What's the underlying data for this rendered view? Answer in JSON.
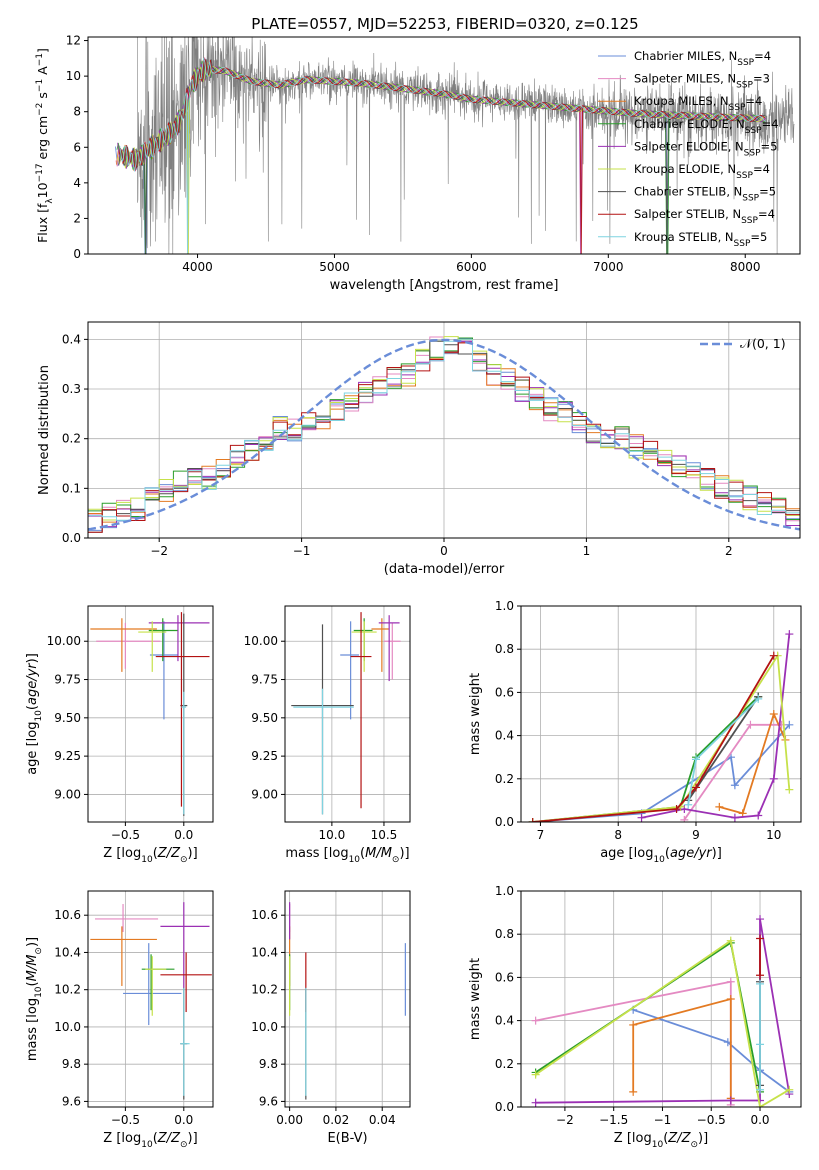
{
  "figure_title": "PLATE=0557, MJD=52253, FIBERID=0320, z=0.125",
  "colors": {
    "spectrum": "#808080",
    "normal_curve": "#6a8dd8",
    "grid": "#b0b0b0"
  },
  "models": [
    {
      "label": "Chabrier MILES, N",
      "sub": "SSP",
      "suffix": "=4",
      "color": "#6a8dd8"
    },
    {
      "label": "Salpeter MILES, N",
      "sub": "SSP",
      "suffix": "=3",
      "color": "#e48ac2"
    },
    {
      "label": "Kroupa MILES, N",
      "sub": "SSP",
      "suffix": "=4",
      "color": "#e37a22"
    },
    {
      "label": "Chabrier ELODIE, N",
      "sub": "SSP",
      "suffix": "=4",
      "color": "#2a9d2a"
    },
    {
      "label": "Salpeter ELODIE, N",
      "sub": "SSP",
      "suffix": "=5",
      "color": "#9b30b4"
    },
    {
      "label": "Kroupa ELODIE, N",
      "sub": "SSP",
      "suffix": "=4",
      "color": "#c6e14a"
    },
    {
      "label": "Chabrier STELIB, N",
      "sub": "SSP",
      "suffix": "=5",
      "color": "#505050"
    },
    {
      "label": "Salpeter STELIB, N",
      "sub": "SSP",
      "suffix": "=4",
      "color": "#b31212"
    },
    {
      "label": "Kroupa STELIB, N",
      "sub": "SSP",
      "suffix": "=5",
      "color": "#7fd3e0"
    }
  ],
  "chart_data": [
    {
      "id": "spectrum",
      "type": "line",
      "xlabel": "wavelength [Angstrom, rest frame]",
      "ylabel": "Flux [f_λ 10^-17 erg cm^-2 s^-1 A^-1]",
      "xlim": [
        3200,
        8400
      ],
      "ylim": [
        0,
        12.2
      ],
      "xticks": [
        4000,
        5000,
        6000,
        7000,
        8000
      ],
      "yticks": [
        0,
        2,
        4,
        6,
        8,
        10,
        12
      ],
      "grid": false,
      "legend": "upper right",
      "continuum_nodes": [
        [
          3420,
          5.6
        ],
        [
          3550,
          5.3
        ],
        [
          3680,
          6.1
        ],
        [
          3800,
          6.8
        ],
        [
          3880,
          7.6
        ],
        [
          3960,
          9.6
        ],
        [
          4050,
          10.4
        ],
        [
          4200,
          10.3
        ],
        [
          4400,
          9.7
        ],
        [
          4600,
          9.5
        ],
        [
          4800,
          9.8
        ],
        [
          5000,
          9.7
        ],
        [
          5200,
          9.6
        ],
        [
          5500,
          9.3
        ],
        [
          5800,
          9.0
        ],
        [
          6000,
          8.7
        ],
        [
          6300,
          8.5
        ],
        [
          6600,
          8.3
        ],
        [
          6900,
          8.1
        ],
        [
          7200,
          7.9
        ],
        [
          7500,
          7.8
        ],
        [
          7800,
          7.7
        ],
        [
          8150,
          7.6
        ]
      ],
      "observed_range": [
        3560,
        8360
      ],
      "model_range": [
        3400,
        8150
      ],
      "model_dips": [
        3620,
        3930,
        6800,
        7430
      ]
    },
    {
      "id": "residual_histogram",
      "type": "bar",
      "xlabel": "(data-model)/error",
      "ylabel": "Normed distribution",
      "xlim": [
        -2.5,
        2.5
      ],
      "ylim": [
        0,
        0.435
      ],
      "xticks": [
        -2,
        -1,
        0,
        1,
        2
      ],
      "yticks": [
        0.0,
        0.1,
        0.2,
        0.3,
        0.4
      ],
      "grid": true,
      "legend": "upper right",
      "curve_label": "𝒩(0, 1)",
      "bin_width": 0.1,
      "bin_centers": [
        -2.45,
        -2.35,
        -2.25,
        -2.15,
        -2.05,
        -1.95,
        -1.85,
        -1.75,
        -1.65,
        -1.55,
        -1.45,
        -1.35,
        -1.25,
        -1.15,
        -1.05,
        -0.95,
        -0.85,
        -0.75,
        -0.65,
        -0.55,
        -0.45,
        -0.35,
        -0.25,
        -0.15,
        -0.05,
        0.05,
        0.15,
        0.25,
        0.35,
        0.45,
        0.55,
        0.65,
        0.75,
        0.85,
        0.95,
        1.05,
        1.15,
        1.25,
        1.35,
        1.45,
        1.55,
        1.65,
        1.75,
        1.85,
        1.95,
        2.05,
        2.15,
        2.25,
        2.35,
        2.45
      ],
      "mean_values": [
        0.035,
        0.045,
        0.052,
        0.06,
        0.08,
        0.095,
        0.11,
        0.13,
        0.12,
        0.14,
        0.165,
        0.18,
        0.2,
        0.22,
        0.215,
        0.235,
        0.24,
        0.26,
        0.275,
        0.29,
        0.3,
        0.32,
        0.33,
        0.36,
        0.38,
        0.39,
        0.385,
        0.36,
        0.33,
        0.32,
        0.3,
        0.28,
        0.26,
        0.25,
        0.23,
        0.215,
        0.205,
        0.2,
        0.185,
        0.175,
        0.155,
        0.145,
        0.13,
        0.12,
        0.105,
        0.095,
        0.08,
        0.07,
        0.06,
        0.05
      ]
    },
    {
      "id": "age_vs_Z",
      "type": "scatter",
      "xlabel": "Z [log10(Z/Z⊙)]",
      "ylabel": "age  [log10(age/yr)]",
      "xlim": [
        -0.82,
        0.25
      ],
      "ylim": [
        8.82,
        10.23
      ],
      "xticks": [
        -0.5,
        0.0
      ],
      "yticks": [
        9.0,
        9.25,
        9.5,
        9.75,
        10.0
      ],
      "grid": true,
      "points": [
        {
          "model": 0,
          "x": -0.17,
          "y": 9.91,
          "xerr": [
            0.12,
            0.12
          ],
          "yerr": [
            0.42,
            0.22
          ]
        },
        {
          "model": 1,
          "x": -0.5,
          "y": 10.0,
          "xerr": [
            0.25,
            0.3
          ],
          "yerr": [
            0.18,
            0.12
          ]
        },
        {
          "model": 2,
          "x": -0.53,
          "y": 10.08,
          "xerr": [
            0.27,
            0.3
          ],
          "yerr": [
            0.28,
            0.07
          ]
        },
        {
          "model": 3,
          "x": -0.18,
          "y": 10.07,
          "xerr": [
            0.12,
            0.13
          ],
          "yerr": [
            0.2,
            0.08
          ]
        },
        {
          "model": 4,
          "x": -0.05,
          "y": 10.12,
          "xerr": [
            0.25,
            0.27
          ],
          "yerr": [
            0.25,
            0.05
          ]
        },
        {
          "model": 5,
          "x": -0.27,
          "y": 10.06,
          "xerr": [
            0.12,
            0.12
          ],
          "yerr": [
            0.26,
            0.07
          ]
        },
        {
          "model": 6,
          "x": 0.0,
          "y": 9.58,
          "xerr": [
            0.03,
            0.03
          ],
          "yerr": [
            0.72,
            0.6
          ]
        },
        {
          "model": 7,
          "x": -0.02,
          "y": 9.9,
          "xerr": [
            0.22,
            0.24
          ],
          "yerr": [
            0.98,
            0.29
          ]
        },
        {
          "model": 8,
          "x": 0.0,
          "y": 9.57,
          "xerr": [
            0.02,
            0.02
          ],
          "yerr": [
            0.7,
            0.1
          ]
        }
      ]
    },
    {
      "id": "age_vs_mass",
      "type": "scatter",
      "xlabel": "mass [log10(M/M⊙)]",
      "ylabel": "",
      "xlim": [
        9.55,
        10.75
      ],
      "ylim": [
        8.82,
        10.23
      ],
      "xticks": [
        10.0,
        10.5
      ],
      "yticks": [
        9.0,
        9.25,
        9.5,
        9.75,
        10.0
      ],
      "grid": true,
      "points": [
        {
          "model": 0,
          "x": 10.18,
          "y": 9.91,
          "xerr": [
            0.1,
            0.08
          ],
          "yerr": [
            0.42,
            0.22
          ]
        },
        {
          "model": 1,
          "x": 10.58,
          "y": 10.0,
          "xerr": [
            0.08,
            0.08
          ],
          "yerr": [
            0.25,
            0.12
          ]
        },
        {
          "model": 2,
          "x": 10.48,
          "y": 10.08,
          "xerr": [
            0.1,
            0.07
          ],
          "yerr": [
            0.28,
            0.07
          ]
        },
        {
          "model": 3,
          "x": 10.31,
          "y": 10.07,
          "xerr": [
            0.1,
            0.08
          ],
          "yerr": [
            0.2,
            0.08
          ]
        },
        {
          "model": 4,
          "x": 10.55,
          "y": 10.12,
          "xerr": [
            0.1,
            0.1
          ],
          "yerr": [
            0.38,
            0.05
          ]
        },
        {
          "model": 5,
          "x": 10.31,
          "y": 10.06,
          "xerr": [
            0.12,
            0.12
          ],
          "yerr": [
            0.26,
            0.07
          ]
        },
        {
          "model": 6,
          "x": 9.91,
          "y": 9.58,
          "xerr": [
            0.3,
            0.3
          ],
          "yerr": [
            0.71,
            0.53
          ]
        },
        {
          "model": 7,
          "x": 10.28,
          "y": 9.9,
          "xerr": [
            0.1,
            0.1
          ],
          "yerr": [
            0.99,
            0.29
          ]
        },
        {
          "model": 8,
          "x": 9.91,
          "y": 9.57,
          "xerr": [
            0.28,
            0.3
          ],
          "yerr": [
            0.7,
            0.12
          ]
        }
      ]
    },
    {
      "id": "mass_weight_vs_age",
      "type": "line",
      "xlabel": "age  [log10(age/yr)]",
      "ylabel": "mass weight",
      "xlim": [
        6.75,
        10.35
      ],
      "ylim": [
        0.0,
        1.0
      ],
      "xticks": [
        7,
        8,
        9,
        10
      ],
      "yticks": [
        0.0,
        0.2,
        0.4,
        0.6,
        0.8,
        1.0
      ],
      "grid": true,
      "series": [
        {
          "model": 0,
          "x": [
            6.9,
            8.3,
            9.45,
            9.5,
            10.2
          ],
          "y": [
            0.0,
            0.04,
            0.3,
            0.17,
            0.45
          ]
        },
        {
          "model": 1,
          "x": [
            8.85,
            9.7,
            10.1
          ],
          "y": [
            0.01,
            0.45,
            0.45
          ]
        },
        {
          "model": 2,
          "x": [
            9.3,
            9.6,
            10.0,
            10.15
          ],
          "y": [
            0.07,
            0.04,
            0.5,
            0.38
          ]
        },
        {
          "model": 3,
          "x": [
            6.9,
            8.8,
            9.0,
            9.8
          ],
          "y": [
            0.0,
            0.07,
            0.3,
            0.58
          ]
        },
        {
          "model": 4,
          "x": [
            8.3,
            8.85,
            9.5,
            9.8,
            10.0,
            10.2
          ],
          "y": [
            0.02,
            0.06,
            0.02,
            0.03,
            0.2,
            0.87
          ]
        },
        {
          "model": 5,
          "x": [
            6.9,
            8.8,
            10.05,
            10.2
          ],
          "y": [
            0.0,
            0.07,
            0.77,
            0.15
          ]
        },
        {
          "model": 6,
          "x": [
            8.9,
            9.8
          ],
          "y": [
            0.1,
            0.58
          ]
        },
        {
          "model": 7,
          "x": [
            6.9,
            8.75,
            9.0,
            10.0
          ],
          "y": [
            0.0,
            0.06,
            0.16,
            0.77
          ]
        },
        {
          "model": 8,
          "x": [
            8.9,
            9.0,
            9.8
          ],
          "y": [
            0.08,
            0.29,
            0.57
          ]
        }
      ]
    },
    {
      "id": "mass_vs_Z",
      "type": "scatter",
      "xlabel": "Z [log10(Z/Z⊙)]",
      "ylabel": "mass [log10(M/M⊙)]",
      "xlim": [
        -0.82,
        0.25
      ],
      "ylim": [
        9.57,
        10.73
      ],
      "xticks": [
        -0.5,
        0.0
      ],
      "yticks": [
        9.6,
        9.8,
        10.0,
        10.2,
        10.4,
        10.6
      ],
      "grid": true,
      "points": [
        {
          "model": 0,
          "x": -0.3,
          "y": 10.18,
          "xerr": [
            0.22,
            0.28
          ],
          "yerr": [
            0.17,
            0.27
          ]
        },
        {
          "model": 1,
          "x": -0.52,
          "y": 10.58,
          "xerr": [
            0.24,
            0.3
          ],
          "yerr": [
            0.07,
            0.08
          ]
        },
        {
          "model": 2,
          "x": -0.53,
          "y": 10.47,
          "xerr": [
            0.27,
            0.3
          ],
          "yerr": [
            0.25,
            0.07
          ]
        },
        {
          "model": 3,
          "x": -0.28,
          "y": 10.31,
          "xerr": [
            0.08,
            0.2
          ],
          "yerr": [
            0.22,
            0.08
          ]
        },
        {
          "model": 4,
          "x": 0.0,
          "y": 10.54,
          "xerr": [
            0.2,
            0.22
          ],
          "yerr": [
            0.34,
            0.13
          ]
        },
        {
          "model": 5,
          "x": -0.27,
          "y": 10.31,
          "xerr": [
            0.06,
            0.12
          ],
          "yerr": [
            0.25,
            0.07
          ]
        },
        {
          "model": 6,
          "x": 0.0,
          "y": 9.91,
          "xerr": [
            0.03,
            0.03
          ],
          "yerr": [
            0.3,
            0.3
          ]
        },
        {
          "model": 7,
          "x": 0.02,
          "y": 10.28,
          "xerr": [
            0.22,
            0.22
          ],
          "yerr": [
            0.2,
            0.12
          ]
        },
        {
          "model": 8,
          "x": 0.0,
          "y": 9.91,
          "xerr": [
            0.03,
            0.05
          ],
          "yerr": [
            0.28,
            0.3
          ]
        }
      ]
    },
    {
      "id": "mass_vs_ebv",
      "type": "scatter",
      "xlabel": "E(B-V)",
      "ylabel": "",
      "xlim": [
        -0.002,
        0.052
      ],
      "ylim": [
        9.57,
        10.73
      ],
      "xticks": [
        0.0,
        0.02,
        0.04
      ],
      "yticks": [
        9.6,
        9.8,
        10.0,
        10.2,
        10.4,
        10.6
      ],
      "grid": true,
      "points": [
        {
          "model": 0,
          "x": 0.05,
          "y": 10.18,
          "xerr": [
            0,
            0
          ],
          "yerr": [
            0.12,
            0.27
          ]
        },
        {
          "model": 1,
          "x": 0.0,
          "y": 10.58,
          "xerr": [
            0,
            0
          ],
          "yerr": [
            0.07,
            0.08
          ]
        },
        {
          "model": 2,
          "x": 0.0,
          "y": 10.47,
          "xerr": [
            0,
            0
          ],
          "yerr": [
            0.25,
            0.07
          ]
        },
        {
          "model": 3,
          "x": 0.0,
          "y": 10.31,
          "xerr": [
            0,
            0
          ],
          "yerr": [
            0.22,
            0.08
          ]
        },
        {
          "model": 4,
          "x": 0.0,
          "y": 10.54,
          "xerr": [
            0,
            0
          ],
          "yerr": [
            0.07,
            0.13
          ]
        },
        {
          "model": 5,
          "x": 0.0,
          "y": 10.31,
          "xerr": [
            0,
            0
          ],
          "yerr": [
            0.25,
            0.07
          ]
        },
        {
          "model": 6,
          "x": 0.007,
          "y": 9.91,
          "xerr": [
            0,
            0
          ],
          "yerr": [
            0.3,
            0.3
          ]
        },
        {
          "model": 7,
          "x": 0.007,
          "y": 10.28,
          "xerr": [
            0,
            0
          ],
          "yerr": [
            0.2,
            0.12
          ]
        },
        {
          "model": 8,
          "x": 0.007,
          "y": 9.91,
          "xerr": [
            0,
            0
          ],
          "yerr": [
            0.28,
            0.3
          ]
        }
      ]
    },
    {
      "id": "mass_weight_vs_Z",
      "type": "line",
      "xlabel": "Z [log10(Z/Z⊙)]",
      "ylabel": "mass weight",
      "xlim": [
        -2.45,
        0.42
      ],
      "ylim": [
        0.0,
        1.0
      ],
      "xticks": [
        -2.0,
        -1.5,
        -1.0,
        -0.5,
        0.0
      ],
      "yticks": [
        0.0,
        0.2,
        0.4,
        0.6,
        0.8,
        1.0
      ],
      "grid": true,
      "series": [
        {
          "model": 0,
          "x": [
            -1.3,
            -0.33,
            0.0,
            0.3
          ],
          "y": [
            0.45,
            0.3,
            0.17,
            0.07
          ]
        },
        {
          "model": 1,
          "x": [
            -2.3,
            -0.3,
            -0.3
          ],
          "y": [
            0.4,
            0.58,
            0.01
          ]
        },
        {
          "model": 2,
          "x": [
            -1.3,
            -1.3,
            -0.3,
            -0.3
          ],
          "y": [
            0.07,
            0.38,
            0.5,
            0.04
          ]
        },
        {
          "model": 3,
          "x": [
            -2.3,
            -0.3,
            0.0
          ],
          "y": [
            0.16,
            0.76,
            0.07
          ]
        },
        {
          "model": 4,
          "x": [
            -2.3,
            -0.3,
            0.0,
            0.0,
            0.3
          ],
          "y": [
            0.02,
            0.03,
            0.03,
            0.87,
            0.06
          ]
        },
        {
          "model": 5,
          "x": [
            -2.3,
            -0.3,
            0.0,
            0.3
          ],
          "y": [
            0.15,
            0.77,
            0.0,
            0.08
          ]
        },
        {
          "model": 6,
          "x": [
            0.0,
            0.0
          ],
          "y": [
            0.58,
            0.1
          ]
        },
        {
          "model": 7,
          "x": [
            0.0,
            0.0
          ],
          "y": [
            0.78,
            0.61
          ]
        },
        {
          "model": 8,
          "x": [
            0.0,
            0.0,
            0.0
          ],
          "y": [
            0.57,
            0.29,
            0.08
          ]
        }
      ]
    }
  ]
}
